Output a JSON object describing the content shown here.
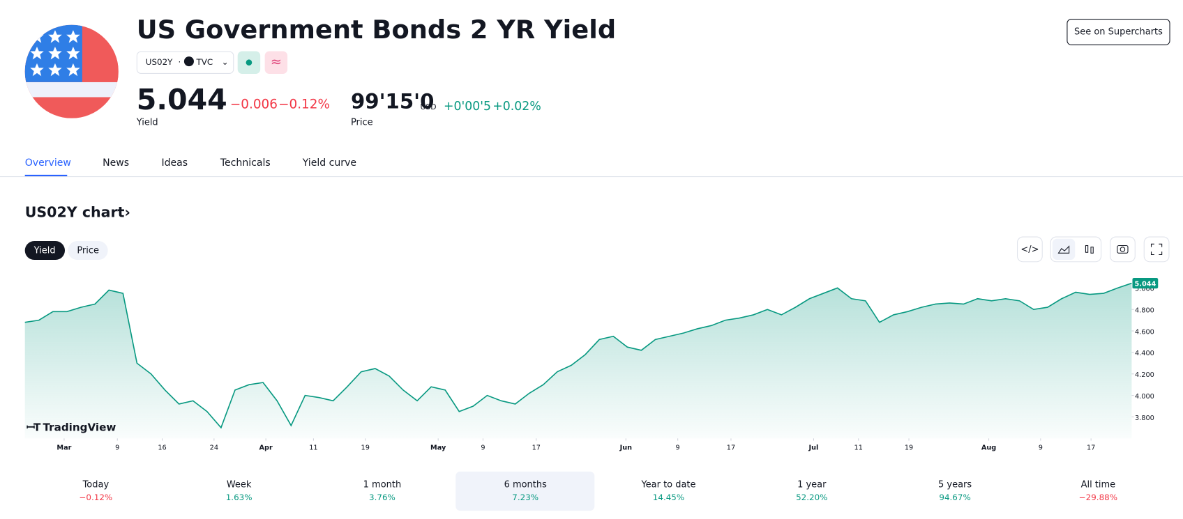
{
  "header": {
    "title": "US Government Bonds 2 YR Yield",
    "symbol": "US02Y",
    "exchange": "TVC",
    "button": "See on Supercharts"
  },
  "quotes": {
    "yield": {
      "value": "5.044",
      "unit": "%",
      "change": "−0.006",
      "change_pct": "−0.12%",
      "label": "Yield"
    },
    "price": {
      "value": "99'15'0",
      "unit": "USD",
      "change": "+0'00'5",
      "change_pct": "+0.02%",
      "label": "Price"
    }
  },
  "tabs": [
    "Overview",
    "News",
    "Ideas",
    "Technicals",
    "Yield curve"
  ],
  "chart_heading": "US02Y chart",
  "toggle": [
    "Yield",
    "Price"
  ],
  "watermark": "TradingView",
  "periods": [
    {
      "label": "Today",
      "value": "−0.12%"
    },
    {
      "label": "Week",
      "value": "1.63%"
    },
    {
      "label": "1 month",
      "value": "3.76%"
    },
    {
      "label": "6 months",
      "value": "7.23%"
    },
    {
      "label": "Year to date",
      "value": "14.45%"
    },
    {
      "label": "1 year",
      "value": "52.20%"
    },
    {
      "label": "5 years",
      "value": "94.67%"
    },
    {
      "label": "All time",
      "value": "−29.88%"
    }
  ],
  "chart_data": {
    "type": "area",
    "color": "#089981",
    "values": [
      4.68,
      4.7,
      4.78,
      4.78,
      4.82,
      4.85,
      4.98,
      4.95,
      4.3,
      4.2,
      4.05,
      3.92,
      3.95,
      3.85,
      3.7,
      4.05,
      4.1,
      4.12,
      3.95,
      3.72,
      4.0,
      3.98,
      3.95,
      4.08,
      4.22,
      4.25,
      4.18,
      4.05,
      3.95,
      4.08,
      4.05,
      3.85,
      3.9,
      4.0,
      3.95,
      3.92,
      4.02,
      4.1,
      4.22,
      4.28,
      4.38,
      4.52,
      4.55,
      4.45,
      4.42,
      4.52,
      4.55,
      4.58,
      4.62,
      4.65,
      4.7,
      4.72,
      4.75,
      4.8,
      4.75,
      4.82,
      4.9,
      4.95,
      5.0,
      4.9,
      4.88,
      4.68,
      4.75,
      4.78,
      4.82,
      4.85,
      4.86,
      4.85,
      4.9,
      4.88,
      4.9,
      4.88,
      4.8,
      4.82,
      4.9,
      4.96,
      4.94,
      4.95,
      5.0,
      5.044
    ],
    "xlim": [
      0,
      79
    ],
    "xticks": [
      {
        "value": 2.8,
        "label": "Mar"
      },
      {
        "value": 6.6,
        "label": "9"
      },
      {
        "value": 9.8,
        "label": "16"
      },
      {
        "value": 13.5,
        "label": "24"
      },
      {
        "value": 17.2,
        "label": "Apr"
      },
      {
        "value": 20.6,
        "label": "11"
      },
      {
        "value": 24.3,
        "label": "19"
      },
      {
        "value": 29.5,
        "label": "May"
      },
      {
        "value": 32.7,
        "label": "9"
      },
      {
        "value": 36.5,
        "label": "17"
      },
      {
        "value": 42.9,
        "label": "Jun"
      },
      {
        "value": 46.6,
        "label": "9"
      },
      {
        "value": 50.4,
        "label": "17"
      },
      {
        "value": 56.3,
        "label": "Jul"
      },
      {
        "value": 59.5,
        "label": "11"
      },
      {
        "value": 63.1,
        "label": "19"
      },
      {
        "value": 68.8,
        "label": "Aug"
      },
      {
        "value": 72.5,
        "label": "9"
      },
      {
        "value": 76.1,
        "label": "17"
      }
    ],
    "ylim": [
      3.6,
      5.1
    ],
    "yticks": [
      {
        "value": 3.8,
        "label": "3.800"
      },
      {
        "value": 4.0,
        "label": "4.000"
      },
      {
        "value": 4.2,
        "label": "4.200"
      },
      {
        "value": 4.4,
        "label": "4.400"
      },
      {
        "value": 4.6,
        "label": "4.600"
      },
      {
        "value": 4.8,
        "label": "4.800"
      },
      {
        "value": 5.0,
        "label": "5.000"
      }
    ]
  }
}
